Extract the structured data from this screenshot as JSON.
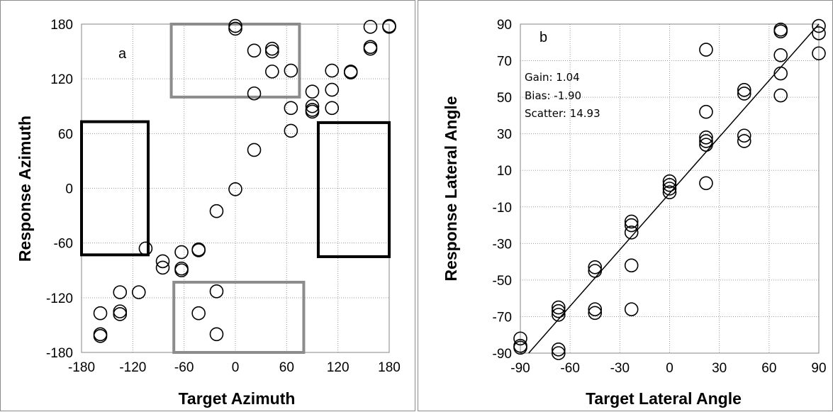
{
  "chart_data": [
    {
      "type": "scatter",
      "panel_label": "a",
      "xlabel": "Target Azimuth",
      "ylabel": "Response Azimuth",
      "xlim": [
        -180,
        180
      ],
      "ylim": [
        -180,
        180
      ],
      "xticks": [
        -180,
        -120,
        -60,
        0,
        60,
        120,
        180
      ],
      "yticks": [
        -180,
        -120,
        -60,
        0,
        60,
        120,
        180
      ],
      "grid": "dotted",
      "marker": "open-circle",
      "points": [
        {
          "x": -158,
          "y": -160
        },
        {
          "x": -158,
          "y": -162
        },
        {
          "x": -158,
          "y": -137
        },
        {
          "x": -135,
          "y": -138
        },
        {
          "x": -135,
          "y": -135
        },
        {
          "x": -135,
          "y": -114
        },
        {
          "x": -113,
          "y": -114
        },
        {
          "x": -105,
          "y": -66
        },
        {
          "x": -85,
          "y": -87
        },
        {
          "x": -85,
          "y": -80
        },
        {
          "x": -63,
          "y": -90
        },
        {
          "x": -63,
          "y": -88
        },
        {
          "x": -63,
          "y": -70
        },
        {
          "x": -43,
          "y": -68
        },
        {
          "x": -43,
          "y": -67
        },
        {
          "x": -43,
          "y": -137
        },
        {
          "x": -22,
          "y": -25
        },
        {
          "x": -22,
          "y": -113
        },
        {
          "x": -22,
          "y": -160
        },
        {
          "x": 0,
          "y": -1
        },
        {
          "x": 0,
          "y": 175
        },
        {
          "x": 0,
          "y": 178
        },
        {
          "x": 22,
          "y": 42
        },
        {
          "x": 22,
          "y": 104
        },
        {
          "x": 22,
          "y": 151
        },
        {
          "x": 43,
          "y": 150
        },
        {
          "x": 43,
          "y": 153
        },
        {
          "x": 43,
          "y": 128
        },
        {
          "x": 65,
          "y": 129
        },
        {
          "x": 65,
          "y": 88
        },
        {
          "x": 65,
          "y": 63
        },
        {
          "x": 90,
          "y": 106
        },
        {
          "x": 90,
          "y": 90
        },
        {
          "x": 90,
          "y": 86
        },
        {
          "x": 90,
          "y": 84
        },
        {
          "x": 113,
          "y": 129
        },
        {
          "x": 113,
          "y": 108
        },
        {
          "x": 113,
          "y": 88
        },
        {
          "x": 135,
          "y": 128
        },
        {
          "x": 135,
          "y": 127
        },
        {
          "x": 158,
          "y": 155
        },
        {
          "x": 158,
          "y": 153
        },
        {
          "x": 158,
          "y": 177
        },
        {
          "x": 180,
          "y": 177
        },
        {
          "x": 180,
          "y": 178
        }
      ],
      "boxes": [
        {
          "x0": -75,
          "x1": 75,
          "y0": 100,
          "y1": 180,
          "color": "#8c8c8c"
        },
        {
          "x0": -72,
          "x1": 80,
          "y0": -180,
          "y1": -103,
          "color": "#8c8c8c"
        },
        {
          "x0": -180,
          "x1": -102,
          "y0": -73,
          "y1": 73,
          "color": "#000000"
        },
        {
          "x0": 97,
          "x1": 180,
          "y0": -75,
          "y1": 72,
          "color": "#000000"
        }
      ]
    },
    {
      "type": "scatter",
      "panel_label": "b",
      "xlabel": "Target Lateral Angle",
      "ylabel": "Response Lateral Angle",
      "xlim": [
        -90,
        90
      ],
      "ylim": [
        -90,
        90
      ],
      "xticks": [
        -90,
        -60,
        -30,
        0,
        30,
        60,
        90
      ],
      "yticks": [
        -90,
        -70,
        -50,
        -30,
        -10,
        10,
        30,
        50,
        70,
        90
      ],
      "grid": "dotted",
      "marker": "open-circle",
      "annotations": [
        "Gain: 1.04",
        "Bias:  -1.90",
        "Scatter:  14.93"
      ],
      "reference_line": {
        "x0": -85,
        "y0": -90,
        "x1": 90,
        "y1": 90
      },
      "points": [
        {
          "x": -90,
          "y": -82
        },
        {
          "x": -90,
          "y": -87
        },
        {
          "x": -90,
          "y": -86
        },
        {
          "x": -67,
          "y": -65
        },
        {
          "x": -67,
          "y": -67
        },
        {
          "x": -67,
          "y": -69
        },
        {
          "x": -67,
          "y": -88
        },
        {
          "x": -67,
          "y": -90
        },
        {
          "x": -45,
          "y": -43
        },
        {
          "x": -45,
          "y": -45
        },
        {
          "x": -45,
          "y": -66
        },
        {
          "x": -45,
          "y": -68
        },
        {
          "x": -23,
          "y": -18
        },
        {
          "x": -23,
          "y": -20
        },
        {
          "x": -23,
          "y": -24
        },
        {
          "x": -23,
          "y": -42
        },
        {
          "x": -23,
          "y": -66
        },
        {
          "x": 0,
          "y": 4
        },
        {
          "x": 0,
          "y": 2
        },
        {
          "x": 0,
          "y": 0
        },
        {
          "x": 0,
          "y": -2
        },
        {
          "x": 22,
          "y": 76
        },
        {
          "x": 22,
          "y": 42
        },
        {
          "x": 22,
          "y": 28
        },
        {
          "x": 22,
          "y": 26
        },
        {
          "x": 22,
          "y": 24
        },
        {
          "x": 22,
          "y": 3
        },
        {
          "x": 45,
          "y": 54
        },
        {
          "x": 45,
          "y": 52
        },
        {
          "x": 45,
          "y": 29
        },
        {
          "x": 45,
          "y": 26
        },
        {
          "x": 67,
          "y": 87
        },
        {
          "x": 67,
          "y": 86
        },
        {
          "x": 67,
          "y": 73
        },
        {
          "x": 67,
          "y": 63
        },
        {
          "x": 67,
          "y": 51
        },
        {
          "x": 90,
          "y": 89
        },
        {
          "x": 90,
          "y": 85
        },
        {
          "x": 90,
          "y": 74
        }
      ]
    }
  ]
}
